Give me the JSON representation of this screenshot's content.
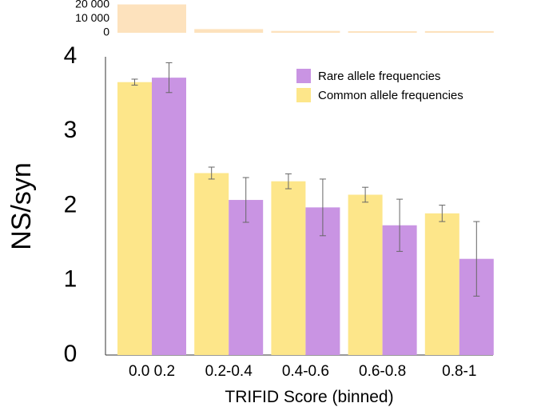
{
  "chart_data": [
    {
      "type": "bar",
      "title": "",
      "xlabel": "",
      "ylabel": "",
      "categories": [
        "0.0 0.2",
        "0.2-0.4",
        "0.4-0.6",
        "0.6-0.8",
        "0.8-1"
      ],
      "ylim": [
        0,
        22000
      ],
      "yticks": [
        {
          "value": 20000,
          "label": "20 000"
        },
        {
          "value": 10000,
          "label": "10 000"
        },
        {
          "value": 0,
          "label": "0"
        }
      ],
      "values": [
        20000,
        2600,
        1300,
        1100,
        1200
      ],
      "color": "#fde2bd"
    },
    {
      "type": "bar",
      "title": "",
      "xlabel": "TRIFID Score (binned)",
      "ylabel": "NS/syn",
      "categories": [
        "0.0 0.2",
        "0.2-0.4",
        "0.4-0.6",
        "0.6-0.8",
        "0.8-1"
      ],
      "ylim": [
        0,
        4
      ],
      "yticks": [
        {
          "value": 0,
          "label": "0"
        },
        {
          "value": 1,
          "label": "1"
        },
        {
          "value": 2,
          "label": "2"
        },
        {
          "value": 3,
          "label": "3"
        },
        {
          "value": 4,
          "label": "4"
        }
      ],
      "grid": false,
      "legend_position": "top-right",
      "series": [
        {
          "name": "Common allele frequencies",
          "color": "#fde68a",
          "values": [
            3.66,
            2.44,
            2.33,
            2.15,
            1.9
          ],
          "errors": [
            0.04,
            0.08,
            0.1,
            0.1,
            0.11
          ]
        },
        {
          "name": "Rare allele frequencies",
          "color": "#c994e3",
          "values": [
            3.72,
            2.08,
            1.98,
            1.74,
            1.29
          ],
          "errors": [
            0.2,
            0.3,
            0.38,
            0.35,
            0.5
          ]
        }
      ]
    }
  ]
}
